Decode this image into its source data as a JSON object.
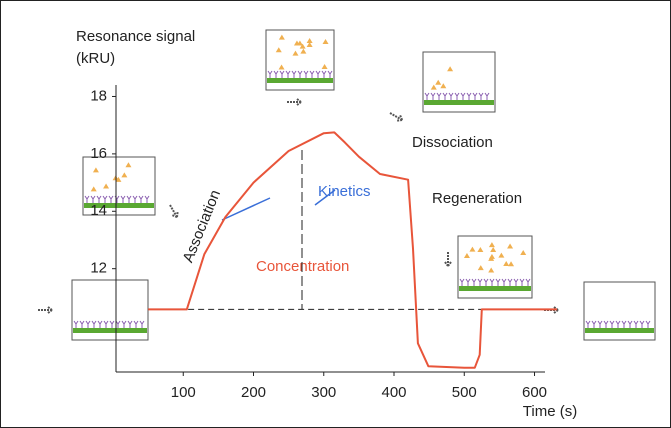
{
  "chart_data": {
    "type": "line",
    "ylabel": "Resonance signal (kRU)",
    "xlabel": "Time (s)",
    "x": [
      50,
      105,
      130,
      160,
      200,
      250,
      300,
      315,
      330,
      350,
      380,
      420,
      427,
      434,
      449,
      500,
      515,
      522,
      525,
      632
    ],
    "series": [
      {
        "color": "#e8553a",
        "values": [
          10.58,
          10.58,
          12.5,
          13.8,
          15.0,
          16.1,
          16.72,
          16.75,
          16.4,
          15.9,
          15.3,
          15.1,
          12.7,
          9.4,
          8.6,
          8.55,
          8.55,
          9.0,
          10.58,
          10.58
        ]
      }
    ],
    "xlim": [
      0,
      632
    ],
    "ylim": [
      8.4,
      18.4
    ],
    "xticks": [
      100,
      200,
      300,
      400,
      500,
      600
    ],
    "yticks": [
      12,
      14,
      16,
      18
    ],
    "annotations": {
      "association": "Association",
      "kinetics": "Kinetics",
      "concentration": "Concentration",
      "dissociation": "Dissociation",
      "regeneration": "Regeneration"
    }
  }
}
